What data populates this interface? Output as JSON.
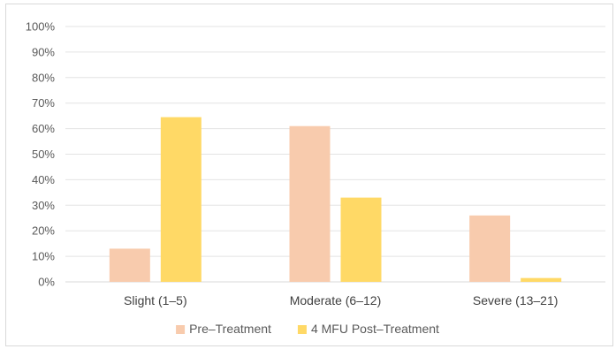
{
  "chart_data": {
    "type": "bar",
    "categories": [
      "Slight (1–5)",
      "Moderate (6–12)",
      "Severe (13–21)"
    ],
    "series": [
      {
        "name": "Pre–Treatment",
        "color": "#f8cbad",
        "values": [
          13,
          61,
          26
        ]
      },
      {
        "name": "4 MFU Post–Treatment",
        "color": "#ffd966",
        "values": [
          64.5,
          33,
          1.5
        ]
      }
    ],
    "yticks": [
      "0%",
      "10%",
      "20%",
      "30%",
      "40%",
      "50%",
      "60%",
      "70%",
      "80%",
      "90%",
      "100%"
    ],
    "ylim": [
      0,
      100
    ],
    "grid": true,
    "legend_position": "bottom"
  }
}
